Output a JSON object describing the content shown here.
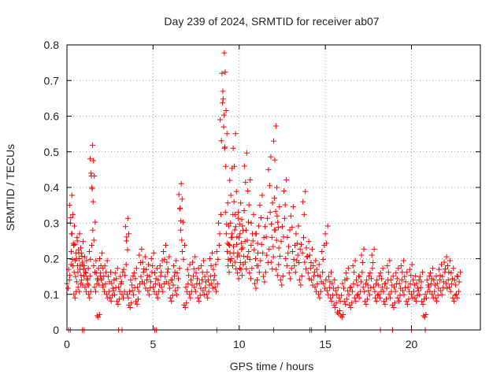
{
  "chart_data": {
    "type": "scatter",
    "title": "Day 239 of 2024, SRMTID for receiver ab07",
    "xlabel": "GPS time / hours",
    "ylabel": "SRMTID / TECUs",
    "xlim": [
      0,
      24
    ],
    "ylim": [
      0,
      0.8
    ],
    "xticks": [
      0,
      5,
      10,
      15,
      20
    ],
    "yticks": [
      0,
      0.1,
      0.2,
      0.3,
      0.4,
      0.5,
      0.6,
      0.7,
      0.8
    ],
    "xtick_labels": [
      "0",
      "5",
      "10",
      "15",
      "20"
    ],
    "ytick_labels": [
      "0",
      "0.1",
      "0.2",
      "0.3",
      "0.4",
      "0.5",
      "0.6",
      "0.7",
      "0.8"
    ],
    "grid": true,
    "marker": "+",
    "colors": {
      "points": "#ff0000",
      "axes": "#000000",
      "grid": "#a0a0a0"
    },
    "series": [
      {
        "name": "SRMTID",
        "points": [
          [
            0.0,
            0.13
          ],
          [
            0.1,
            0.17
          ],
          [
            0.15,
            0.35
          ],
          [
            0.2,
            0.3
          ],
          [
            0.25,
            0.22
          ],
          [
            0.3,
            0.27
          ],
          [
            0.35,
            0.18
          ],
          [
            0.4,
            0.1
          ],
          [
            0.45,
            0.24
          ],
          [
            0.5,
            0.15
          ],
          [
            0.55,
            0.2
          ],
          [
            0.6,
            0.25
          ],
          [
            0.65,
            0.12
          ],
          [
            0.7,
            0.2
          ],
          [
            0.75,
            0.17
          ],
          [
            0.8,
            0.23
          ],
          [
            0.85,
            0.14
          ],
          [
            0.9,
            0.19
          ],
          [
            1.0,
            0.18
          ],
          [
            1.05,
            0.12
          ],
          [
            1.1,
            0.16
          ],
          [
            1.2,
            0.14
          ],
          [
            1.25,
            0.1
          ],
          [
            1.3,
            0.22
          ],
          [
            1.35,
            0.48
          ],
          [
            1.4,
            0.44
          ],
          [
            1.45,
            0.4
          ],
          [
            1.5,
            0.28
          ],
          [
            1.55,
            0.18
          ],
          [
            1.6,
            0.12
          ],
          [
            1.7,
            0.16
          ],
          [
            1.75,
            0.04
          ],
          [
            1.8,
            0.14
          ],
          [
            1.9,
            0.2
          ],
          [
            1.95,
            0.16
          ],
          [
            2.0,
            0.14
          ],
          [
            2.1,
            0.12
          ],
          [
            2.2,
            0.18
          ],
          [
            2.3,
            0.1
          ],
          [
            2.4,
            0.15
          ],
          [
            2.5,
            0.09
          ],
          [
            2.6,
            0.13
          ],
          [
            2.7,
            0.11
          ],
          [
            2.8,
            0.16
          ],
          [
            2.9,
            0.08
          ],
          [
            3.0,
            0.12
          ],
          [
            3.1,
            0.15
          ],
          [
            3.2,
            0.1
          ],
          [
            3.3,
            0.17
          ],
          [
            3.4,
            0.29
          ],
          [
            3.45,
            0.25
          ],
          [
            3.5,
            0.1
          ],
          [
            3.6,
            0.07
          ],
          [
            3.7,
            0.14
          ],
          [
            3.8,
            0.11
          ],
          [
            3.9,
            0.16
          ],
          [
            4.0,
            0.08
          ],
          [
            4.1,
            0.12
          ],
          [
            4.2,
            0.21
          ],
          [
            4.3,
            0.15
          ],
          [
            4.4,
            0.19
          ],
          [
            4.5,
            0.13
          ],
          [
            4.6,
            0.17
          ],
          [
            4.7,
            0.11
          ],
          [
            4.8,
            0.15
          ],
          [
            4.9,
            0.2
          ],
          [
            5.0,
            0.12
          ],
          [
            5.1,
            0.16
          ],
          [
            5.2,
            0.1
          ],
          [
            5.3,
            0.14
          ],
          [
            5.4,
            0.18
          ],
          [
            5.5,
            0.12
          ],
          [
            5.6,
            0.22
          ],
          [
            5.7,
            0.15
          ],
          [
            5.8,
            0.19
          ],
          [
            5.9,
            0.13
          ],
          [
            6.0,
            0.09
          ],
          [
            6.1,
            0.14
          ],
          [
            6.2,
            0.18
          ],
          [
            6.3,
            0.11
          ],
          [
            6.4,
            0.16
          ],
          [
            6.5,
            0.38
          ],
          [
            6.55,
            0.34
          ],
          [
            6.6,
            0.28
          ],
          [
            6.7,
            0.22
          ],
          [
            6.8,
            0.07
          ],
          [
            6.9,
            0.12
          ],
          [
            7.0,
            0.17
          ],
          [
            7.1,
            0.1
          ],
          [
            7.2,
            0.14
          ],
          [
            7.3,
            0.19
          ],
          [
            7.4,
            0.12
          ],
          [
            7.5,
            0.16
          ],
          [
            7.6,
            0.09
          ],
          [
            7.7,
            0.13
          ],
          [
            7.8,
            0.18
          ],
          [
            7.9,
            0.11
          ],
          [
            8.0,
            0.15
          ],
          [
            8.1,
            0.1
          ],
          [
            8.2,
            0.14
          ],
          [
            8.3,
            0.2
          ],
          [
            8.4,
            0.13
          ],
          [
            8.5,
            0.17
          ],
          [
            8.6,
            0.12
          ],
          [
            8.7,
            0.22
          ],
          [
            8.8,
            0.3
          ],
          [
            8.9,
            0.59
          ],
          [
            9.0,
            0.72
          ],
          [
            9.05,
            0.67
          ],
          [
            9.1,
            0.57
          ],
          [
            9.15,
            0.51
          ],
          [
            9.2,
            0.33
          ],
          [
            9.25,
            0.27
          ],
          [
            9.3,
            0.22
          ],
          [
            9.35,
            0.18
          ],
          [
            9.4,
            0.24
          ],
          [
            9.45,
            0.42
          ],
          [
            9.5,
            0.3
          ],
          [
            9.55,
            0.2
          ],
          [
            9.6,
            0.26
          ],
          [
            9.65,
            0.51
          ],
          [
            9.7,
            0.36
          ],
          [
            9.75,
            0.19
          ],
          [
            9.8,
            0.29
          ],
          [
            9.85,
            0.24
          ],
          [
            9.9,
            0.16
          ],
          [
            9.95,
            0.33
          ],
          [
            10.0,
            0.21
          ],
          [
            10.05,
            0.27
          ],
          [
            10.1,
            0.17
          ],
          [
            10.15,
            0.31
          ],
          [
            10.2,
            0.23
          ],
          [
            10.3,
            0.46
          ],
          [
            10.35,
            0.19
          ],
          [
            10.4,
            0.28
          ],
          [
            10.5,
            0.39
          ],
          [
            10.55,
            0.22
          ],
          [
            10.6,
            0.16
          ],
          [
            10.7,
            0.3
          ],
          [
            10.8,
            0.25
          ],
          [
            10.9,
            0.13
          ],
          [
            10.95,
            0.2
          ],
          [
            11.0,
            0.27
          ],
          [
            11.1,
            0.18
          ],
          [
            11.2,
            0.35
          ],
          [
            11.3,
            0.24
          ],
          [
            11.4,
            0.15
          ],
          [
            11.5,
            0.29
          ],
          [
            11.6,
            0.21
          ],
          [
            11.7,
            0.45
          ],
          [
            11.8,
            0.33
          ],
          [
            11.85,
            0.19
          ],
          [
            11.9,
            0.26
          ],
          [
            12.0,
            0.53
          ],
          [
            12.05,
            0.37
          ],
          [
            12.1,
            0.28
          ],
          [
            12.15,
            0.17
          ],
          [
            12.2,
            0.32
          ],
          [
            12.3,
            0.23
          ],
          [
            12.4,
            0.14
          ],
          [
            12.5,
            0.29
          ],
          [
            12.6,
            0.39
          ],
          [
            12.7,
            0.2
          ],
          [
            12.8,
            0.26
          ],
          [
            12.9,
            0.16
          ],
          [
            13.0,
            0.32
          ],
          [
            13.1,
            0.22
          ],
          [
            13.2,
            0.18
          ],
          [
            13.3,
            0.27
          ],
          [
            13.4,
            0.21
          ],
          [
            13.5,
            0.14
          ],
          [
            13.6,
            0.24
          ],
          [
            13.7,
            0.36
          ],
          [
            13.8,
            0.19
          ],
          [
            13.9,
            0.23
          ],
          [
            14.0,
            0.16
          ],
          [
            14.1,
            0.21
          ],
          [
            14.2,
            0.14
          ],
          [
            14.3,
            0.18
          ],
          [
            14.4,
            0.12
          ],
          [
            14.5,
            0.17
          ],
          [
            14.6,
            0.1
          ],
          [
            14.7,
            0.15
          ],
          [
            14.8,
            0.22
          ],
          [
            14.9,
            0.13
          ],
          [
            15.0,
            0.27
          ],
          [
            15.1,
            0.11
          ],
          [
            15.2,
            0.15
          ],
          [
            15.3,
            0.09
          ],
          [
            15.4,
            0.13
          ],
          [
            15.5,
            0.07
          ],
          [
            15.6,
            0.11
          ],
          [
            15.7,
            0.05
          ],
          [
            15.8,
            0.09
          ],
          [
            15.9,
            0.04
          ],
          [
            16.0,
            0.13
          ],
          [
            16.1,
            0.08
          ],
          [
            16.2,
            0.16
          ],
          [
            16.3,
            0.11
          ],
          [
            16.4,
            0.07
          ],
          [
            16.5,
            0.12
          ],
          [
            16.6,
            0.18
          ],
          [
            16.7,
            0.09
          ],
          [
            16.8,
            0.14
          ],
          [
            16.9,
            0.1
          ],
          [
            17.0,
            0.15
          ],
          [
            17.1,
            0.21
          ],
          [
            17.2,
            0.12
          ],
          [
            17.3,
            0.08
          ],
          [
            17.4,
            0.14
          ],
          [
            17.5,
            0.11
          ],
          [
            17.6,
            0.16
          ],
          [
            17.7,
            0.21
          ],
          [
            17.8,
            0.12
          ],
          [
            17.9,
            0.09
          ],
          [
            18.0,
            0.14
          ],
          [
            18.1,
            0.1
          ],
          [
            18.2,
            0.16
          ],
          [
            18.3,
            0.12
          ],
          [
            18.4,
            0.08
          ],
          [
            18.5,
            0.13
          ],
          [
            18.6,
            0.18
          ],
          [
            18.7,
            0.1
          ],
          [
            18.8,
            0.14
          ],
          [
            18.9,
            0.07
          ],
          [
            19.0,
            0.12
          ],
          [
            19.1,
            0.16
          ],
          [
            19.2,
            0.09
          ],
          [
            19.3,
            0.13
          ],
          [
            19.4,
            0.18
          ],
          [
            19.5,
            0.11
          ],
          [
            19.6,
            0.15
          ],
          [
            19.7,
            0.08
          ],
          [
            19.8,
            0.12
          ],
          [
            19.9,
            0.17
          ],
          [
            20.0,
            0.1
          ],
          [
            20.1,
            0.14
          ],
          [
            20.2,
            0.09
          ],
          [
            20.3,
            0.13
          ],
          [
            20.4,
            0.11
          ],
          [
            20.5,
            0.15
          ],
          [
            20.6,
            0.08
          ],
          [
            20.7,
            0.04
          ],
          [
            20.8,
            0.1
          ],
          [
            20.9,
            0.14
          ],
          [
            21.0,
            0.12
          ],
          [
            21.1,
            0.16
          ],
          [
            21.2,
            0.1
          ],
          [
            21.3,
            0.14
          ],
          [
            21.4,
            0.09
          ],
          [
            21.5,
            0.13
          ],
          [
            21.6,
            0.17
          ],
          [
            21.7,
            0.11
          ],
          [
            21.8,
            0.15
          ],
          [
            21.9,
            0.19
          ],
          [
            22.0,
            0.13
          ],
          [
            22.1,
            0.18
          ],
          [
            22.2,
            0.12
          ],
          [
            22.3,
            0.16
          ],
          [
            22.4,
            0.09
          ],
          [
            22.5,
            0.14
          ],
          [
            22.6,
            0.1
          ],
          [
            22.7,
            0.15
          ]
        ],
        "zero_points": [
          0.1,
          0.2,
          0.9,
          1.0,
          3.0,
          3.2,
          5.1,
          5.2,
          8.7,
          12.0,
          14.1,
          14.2,
          15.0,
          18.2,
          18.9,
          20.0,
          20.8
        ]
      }
    ]
  }
}
